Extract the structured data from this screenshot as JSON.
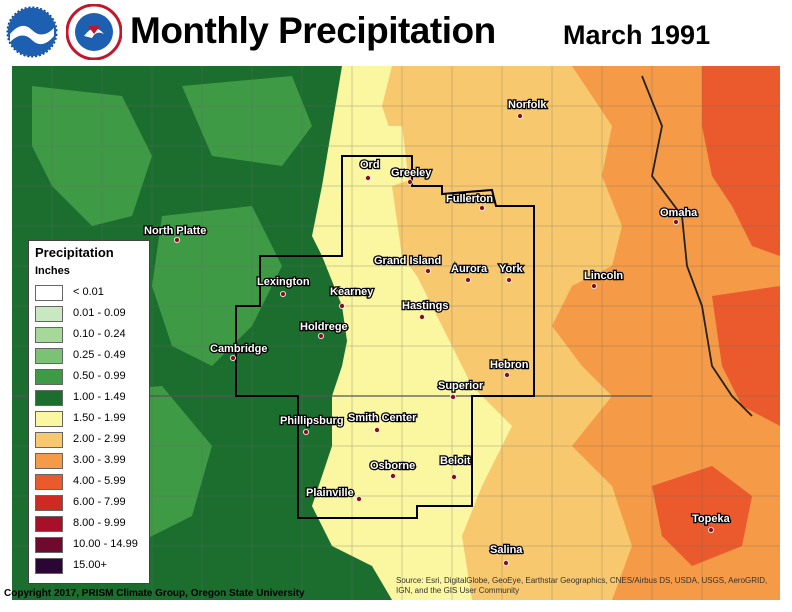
{
  "header": {
    "title": "Monthly Precipitation",
    "subtitle": "March 1991"
  },
  "logos": {
    "noaa": "noaa-logo",
    "nws": "national-weather-service-logo"
  },
  "legend": {
    "title": "Precipitation",
    "units": "Inches",
    "items": [
      {
        "label": "< 0.01",
        "color": "#ffffff"
      },
      {
        "label": "0.01 - 0.09",
        "color": "#c9e8c1"
      },
      {
        "label": "0.10 - 0.24",
        "color": "#a6d89a"
      },
      {
        "label": "0.25 - 0.49",
        "color": "#7cc274"
      },
      {
        "label": "0.50 - 0.99",
        "color": "#3e9a45"
      },
      {
        "label": "1.00 - 1.49",
        "color": "#1b6e2e"
      },
      {
        "label": "1.50 - 1.99",
        "color": "#fbf6a0"
      },
      {
        "label": "2.00 - 2.99",
        "color": "#f8c86e"
      },
      {
        "label": "3.00 - 3.99",
        "color": "#f59a46"
      },
      {
        "label": "4.00 - 5.99",
        "color": "#ea5a2c"
      },
      {
        "label": "6.00 - 7.99",
        "color": "#cf2a22"
      },
      {
        "label": "8.00 - 9.99",
        "color": "#a8102a"
      },
      {
        "label": "10.00 - 14.99",
        "color": "#6e0a2e"
      },
      {
        "label": "15.00+",
        "color": "#2a0634"
      }
    ]
  },
  "cities": [
    {
      "name": "Norfolk"
    },
    {
      "name": "Ord"
    },
    {
      "name": "Greeley"
    },
    {
      "name": "Fullerton"
    },
    {
      "name": "North Platte"
    },
    {
      "name": "Omaha"
    },
    {
      "name": "Grand Island"
    },
    {
      "name": "Aurora"
    },
    {
      "name": "York"
    },
    {
      "name": "Lincoln"
    },
    {
      "name": "Lexington"
    },
    {
      "name": "Kearney"
    },
    {
      "name": "Hastings"
    },
    {
      "name": "Holdrege"
    },
    {
      "name": "Cambridge"
    },
    {
      "name": "Hebron"
    },
    {
      "name": "Superior"
    },
    {
      "name": "Phillipsburg"
    },
    {
      "name": "Smith Center"
    },
    {
      "name": "Osborne"
    },
    {
      "name": "Beloit"
    },
    {
      "name": "Plainville"
    },
    {
      "name": "Topeka"
    },
    {
      "name": "Salina"
    }
  ],
  "footer": {
    "credit": "Copyright 2017, PRISM Climate Group, Oregon State University",
    "source_line1": "Source: Esri, DigitalGlobe, GeoEye, Earthstar Geographics, CNES/Airbus DS, USDA, USGS, AeroGRID,",
    "source_line2": "IGN, and the GIS User Community"
  }
}
